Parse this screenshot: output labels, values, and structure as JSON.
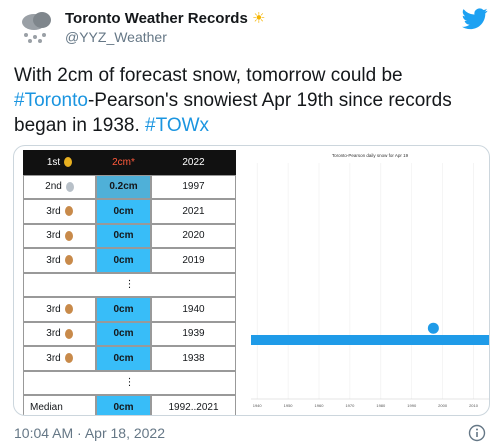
{
  "tweet": {
    "name": "Toronto Weather Records",
    "handle": "@YYZ_Weather",
    "text": [
      [
        {
          "t": "With 2cm of forecast snow, tomorrow could be"
        }
      ],
      [
        {
          "t": "#Toronto",
          "tag": true
        },
        {
          "t": "-Pearson's snowiest Apr 19th since records"
        }
      ],
      [
        {
          "t": "began in 1938. "
        },
        {
          "t": "#TOWx",
          "tag": true
        }
      ]
    ],
    "timestamp": "10:04 AM · Apr 18, 2022"
  },
  "table": {
    "rows": [
      [
        "1st",
        "2cm*",
        "2022"
      ],
      [
        "2nd",
        "0.2cm",
        "1997"
      ],
      [
        "3rd",
        "0cm",
        "2021"
      ],
      [
        "3rd",
        "0cm",
        "2020"
      ],
      [
        "3rd",
        "0cm",
        "2019"
      ],
      [
        "⋮"
      ],
      [
        "3rd",
        "0cm",
        "1940"
      ],
      [
        "3rd",
        "0cm",
        "1939"
      ],
      [
        "3rd",
        "0cm",
        "1938"
      ],
      [
        "⋮"
      ],
      [
        "Median",
        "0cm",
        "1992..2021"
      ]
    ]
  },
  "chart": {
    "type": "scatter",
    "title": "Toronto-Pearson daily snow for Apr 19",
    "x": [
      1997
    ],
    "values": [
      0.2
    ],
    "color": "#1f9be8",
    "xlim": [
      1938,
      2015
    ],
    "ylim": [
      -1,
      3
    ],
    "xticks": [
      1940,
      1950,
      1960,
      1970,
      1980,
      1990,
      2000,
      2010
    ]
  }
}
